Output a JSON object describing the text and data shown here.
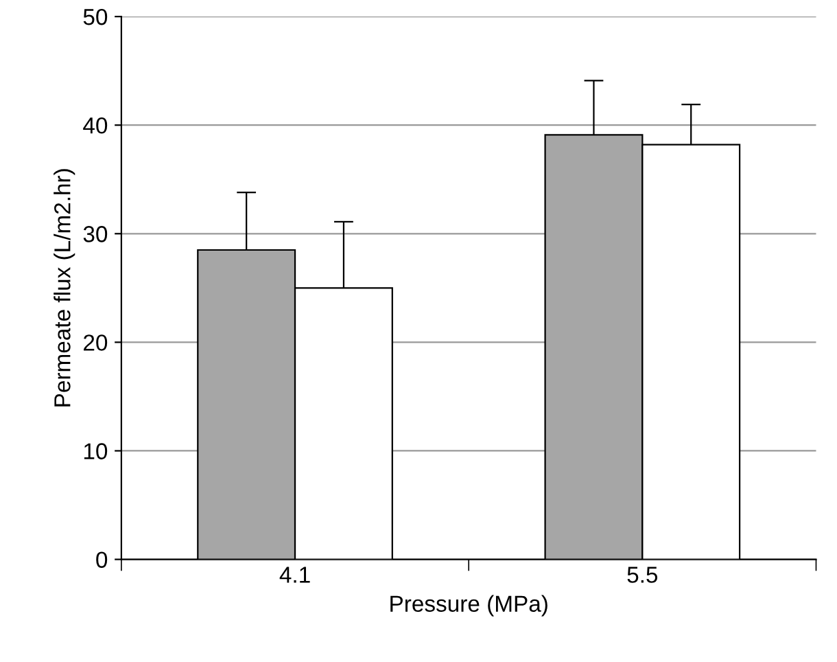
{
  "chart_data": {
    "type": "bar",
    "xlabel": "Pressure (MPa)",
    "ylabel": "Permeate flux (L/m2.hr)",
    "categories": [
      "4.1",
      "5.5"
    ],
    "series": [
      {
        "color": "#a6a6a6",
        "values": [
          28.5,
          39.1
        ],
        "errors": [
          5.3,
          5.0
        ]
      },
      {
        "color": "#ffffff",
        "values": [
          25.0,
          38.2
        ],
        "errors": [
          6.1,
          3.7
        ]
      }
    ],
    "ylim": [
      0,
      50
    ],
    "yticks": [
      0,
      10,
      20,
      30,
      40,
      50
    ],
    "grid": "y"
  }
}
